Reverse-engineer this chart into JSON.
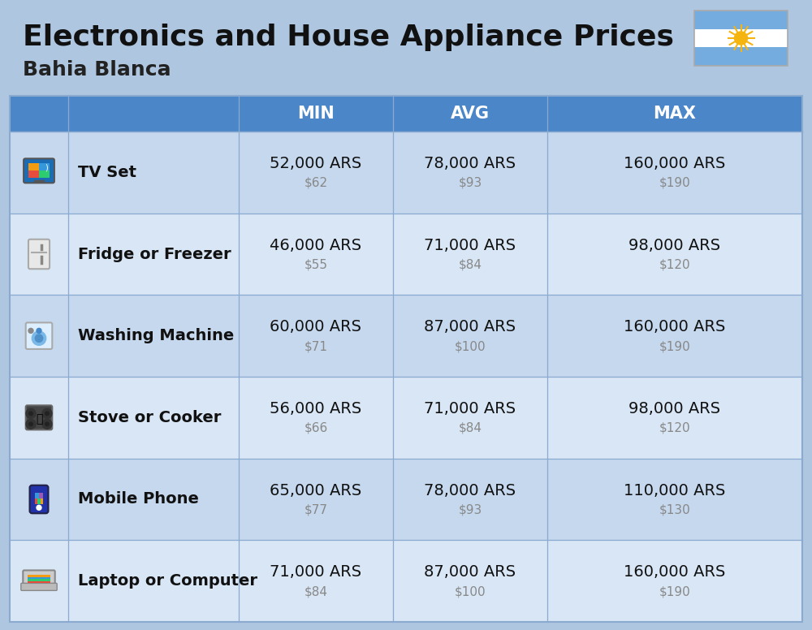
{
  "title": "Electronics and House Appliance Prices",
  "subtitle": "Bahia Blanca",
  "bg_color": "#aec6df",
  "header_bg": "#4a86c8",
  "header_text_color": "#ffffff",
  "row_bg_even": "#c5d8ee",
  "row_bg_odd": "#d8e6f5",
  "grid_color": "#8aaacf",
  "col_header_labels": [
    "MIN",
    "AVG",
    "MAX"
  ],
  "items": [
    {
      "name": "TV Set",
      "min_ars": "52,000 ARS",
      "min_usd": "$62",
      "avg_ars": "78,000 ARS",
      "avg_usd": "$93",
      "max_ars": "160,000 ARS",
      "max_usd": "$190"
    },
    {
      "name": "Fridge or Freezer",
      "min_ars": "46,000 ARS",
      "min_usd": "$55",
      "avg_ars": "71,000 ARS",
      "avg_usd": "$84",
      "max_ars": "98,000 ARS",
      "max_usd": "$120"
    },
    {
      "name": "Washing Machine",
      "min_ars": "60,000 ARS",
      "min_usd": "$71",
      "avg_ars": "87,000 ARS",
      "avg_usd": "$100",
      "max_ars": "160,000 ARS",
      "max_usd": "$190"
    },
    {
      "name": "Stove or Cooker",
      "min_ars": "56,000 ARS",
      "min_usd": "$66",
      "avg_ars": "71,000 ARS",
      "avg_usd": "$84",
      "max_ars": "98,000 ARS",
      "max_usd": "$120"
    },
    {
      "name": "Mobile Phone",
      "min_ars": "65,000 ARS",
      "min_usd": "$77",
      "avg_ars": "78,000 ARS",
      "avg_usd": "$93",
      "max_ars": "110,000 ARS",
      "max_usd": "$130"
    },
    {
      "name": "Laptop or Computer",
      "min_ars": "71,000 ARS",
      "min_usd": "$84",
      "avg_ars": "87,000 ARS",
      "avg_usd": "$100",
      "max_ars": "160,000 ARS",
      "max_usd": "$190"
    }
  ],
  "title_fontsize": 26,
  "subtitle_fontsize": 18,
  "header_fontsize": 15,
  "item_name_fontsize": 14,
  "item_ars_fontsize": 14,
  "item_usd_fontsize": 11,
  "flag_colors": [
    "#74acdf",
    "#ffffff",
    "#74acdf"
  ],
  "sun_color": "#f6b40e",
  "icon_bg_colors": [
    "#3a7bd5",
    "#e8e8f0",
    "#ddeeff",
    "#444444",
    "#223388",
    "#ddddcc"
  ]
}
